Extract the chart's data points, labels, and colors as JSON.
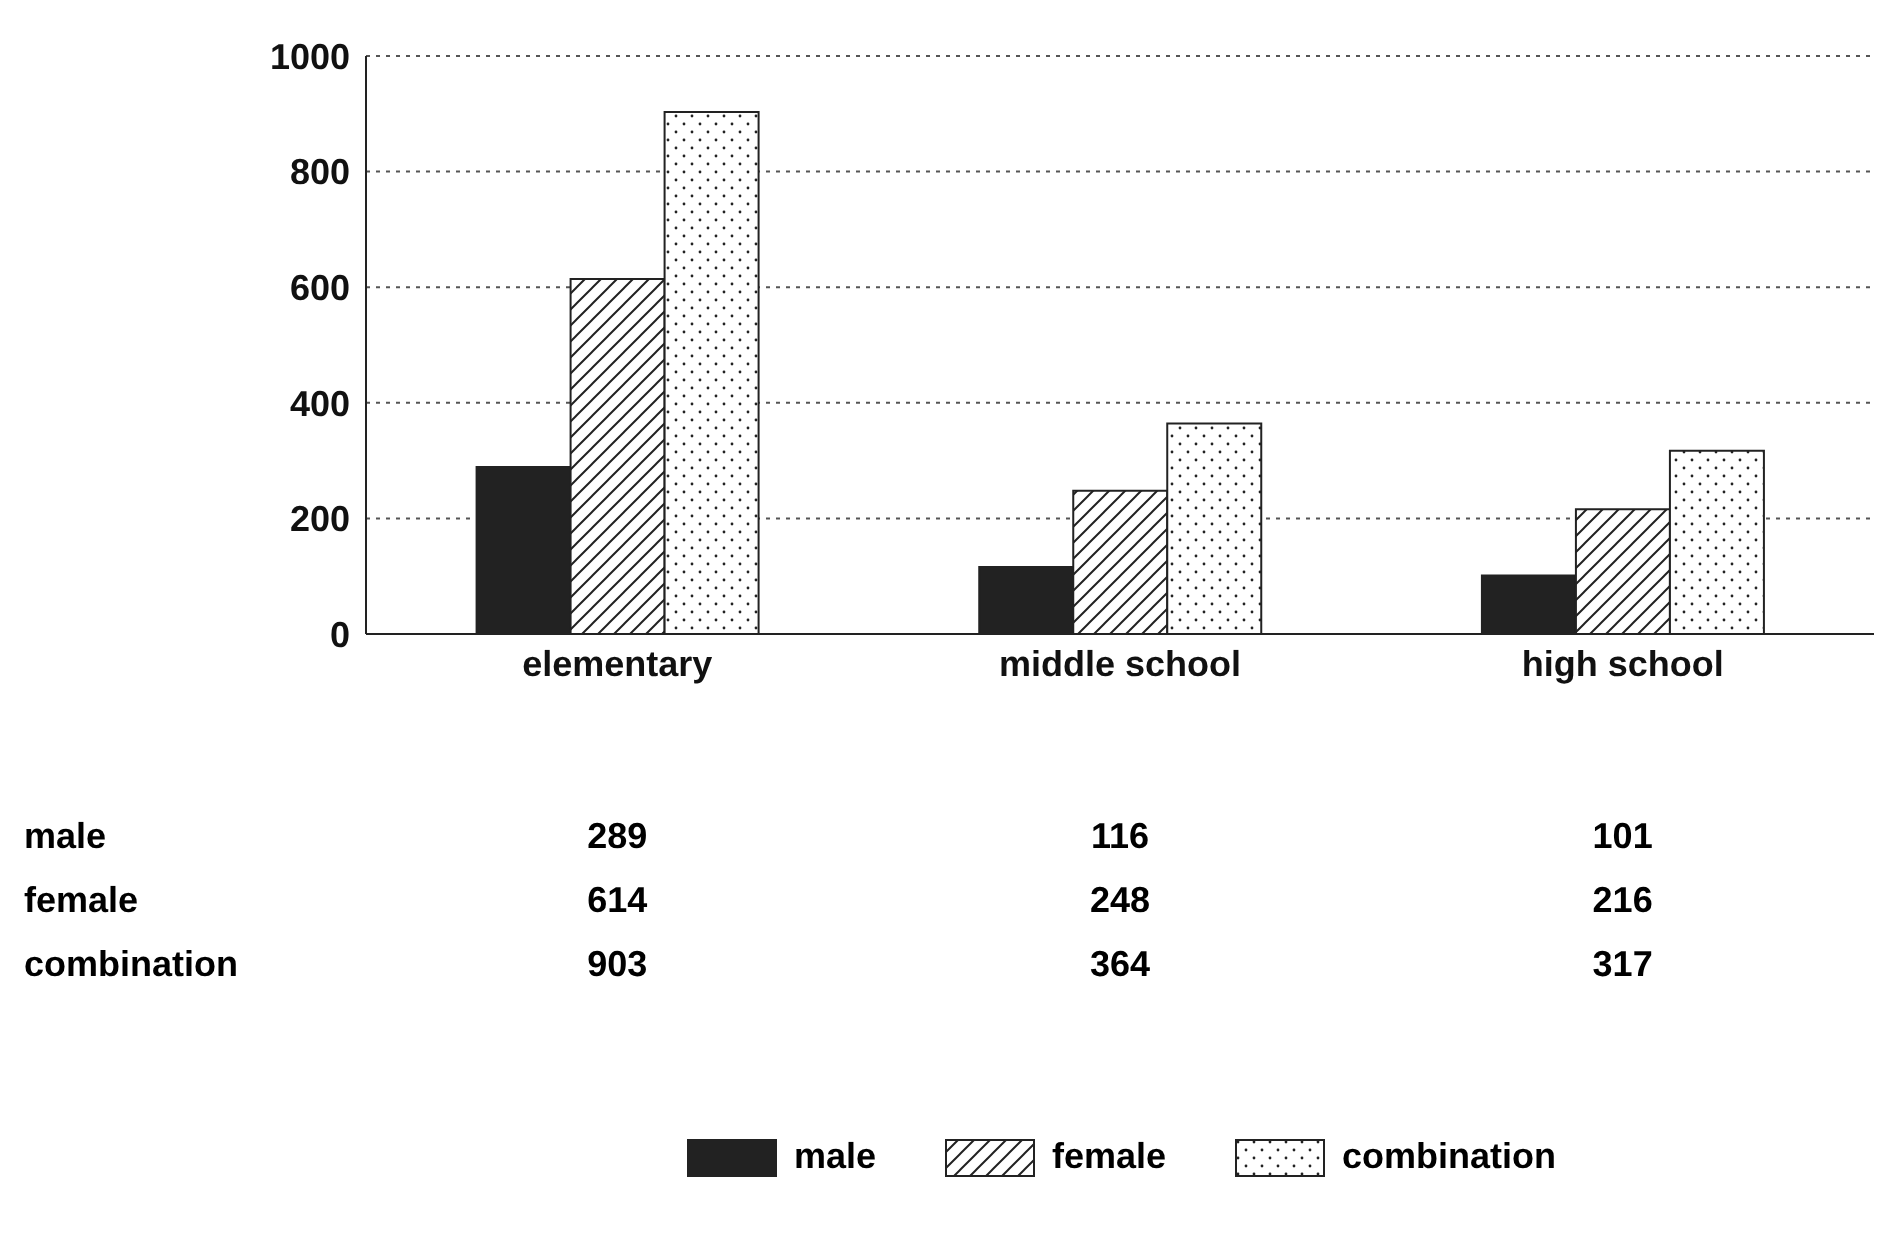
{
  "chart_data": {
    "type": "bar",
    "categories": [
      "elementary",
      "middle school",
      "high school"
    ],
    "series": [
      {
        "name": "male",
        "color": "#222222",
        "values": [
          289,
          116,
          101
        ]
      },
      {
        "name": "female",
        "color": "#222222",
        "values": [
          614,
          248,
          216
        ]
      },
      {
        "name": "combination",
        "color": "#222222",
        "values": [
          903,
          364,
          317
        ]
      }
    ],
    "ylim": [
      0,
      1000
    ],
    "yticks": [
      0,
      200,
      400,
      600,
      800,
      1000
    ],
    "grid": "y",
    "legend": "bottom",
    "data_labels": true
  }
}
